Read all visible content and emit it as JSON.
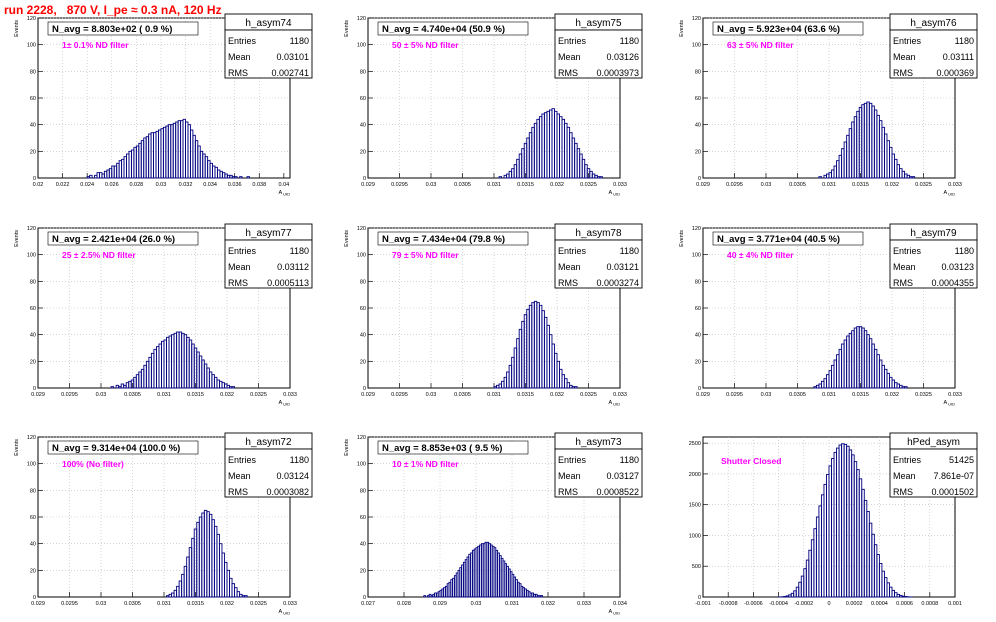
{
  "page_title": "run 2228,   870 V, I_pe ≈ 0.3 nA, 120 Hz",
  "colors": {
    "hist": "#000080",
    "label": "#ff00ff",
    "title": "#ff0000",
    "grid": "#bbbbbb"
  },
  "chart_data": [
    {
      "type": "bar",
      "name": "h_asym74",
      "navg": "N_avg = 8.803e+02 ( 0.9 %)",
      "filter": "1± 0.1% ND filter",
      "stats": {
        "entries": "1180",
        "mean": "0.03101",
        "rms": "0.002741"
      },
      "ylabel": "Events",
      "xlabel": "A_UID",
      "xlim": [
        0.02,
        0.0405
      ],
      "ylim": [
        0,
        120
      ],
      "xticks": [
        0.02,
        0.022,
        0.024,
        0.026,
        0.028,
        0.03,
        0.032,
        0.034,
        0.036,
        0.038,
        0.04
      ],
      "xtick_labels": [
        "0.02",
        "0.022",
        "0.024",
        "0.026",
        "0.028",
        "0.03",
        "0.032",
        "0.034",
        "0.036",
        "0.038",
        "0.04"
      ],
      "yticks": [
        0,
        20,
        40,
        60,
        80,
        100,
        120
      ],
      "bins": {
        "x0": 0.02,
        "w": 0.0002,
        "values": [
          0,
          0,
          0,
          0,
          0,
          0,
          0,
          0,
          0,
          0,
          0,
          0,
          0,
          0,
          0,
          0,
          0,
          0,
          0,
          0,
          1,
          2,
          0,
          2,
          4,
          4,
          3,
          5,
          6,
          7,
          9,
          9,
          11,
          13,
          14,
          16,
          18,
          20,
          21,
          23,
          24,
          26,
          28,
          30,
          31,
          33,
          34,
          34,
          35,
          36,
          37,
          38,
          39,
          40,
          40,
          41,
          42,
          43,
          43,
          44,
          42,
          40,
          36,
          32,
          28,
          24,
          20,
          18,
          16,
          13,
          11,
          9,
          8,
          6,
          5,
          4,
          3,
          2,
          2,
          1,
          1,
          0,
          1,
          0,
          0,
          1,
          0,
          0,
          0,
          0,
          0,
          0,
          0,
          0,
          0,
          0,
          0,
          0,
          0,
          0,
          0,
          0,
          0
        ]
      }
    },
    {
      "type": "bar",
      "name": "h_asym75",
      "navg": "N_avg = 4.740e+04 (50.9 %)",
      "filter": "50 ± 5% ND filter",
      "stats": {
        "entries": "1180",
        "mean": "0.03126",
        "rms": "0.0003973"
      },
      "ylabel": "Events",
      "xlabel": "A_UID",
      "xlim": [
        0.029,
        0.033
      ],
      "ylim": [
        0,
        120
      ],
      "xticks": [
        0.029,
        0.0295,
        0.03,
        0.0305,
        0.031,
        0.0315,
        0.032,
        0.0325,
        0.033
      ],
      "xtick_labels": [
        "0.029",
        "0.0295",
        "0.03",
        "0.0305",
        "0.031",
        "0.0315",
        "0.032",
        "0.0325",
        "0.033"
      ],
      "yticks": [
        0,
        20,
        40,
        60,
        80,
        100,
        120
      ],
      "bins": {
        "x0": 0.0298,
        "w": 4e-05,
        "values": [
          0,
          0,
          0,
          0,
          0,
          0,
          0,
          0,
          0,
          0,
          0,
          0,
          0,
          0,
          0,
          0,
          0,
          0,
          0,
          0,
          0,
          0,
          0,
          0,
          0,
          0,
          0,
          0,
          0,
          0,
          0,
          0,
          1,
          0,
          2,
          3,
          5,
          7,
          10,
          14,
          18,
          22,
          26,
          30,
          34,
          38,
          41,
          44,
          46,
          48,
          49,
          50,
          51,
          52,
          50,
          48,
          46,
          44,
          41,
          38,
          34,
          30,
          26,
          22,
          18,
          14,
          10,
          7,
          5,
          3,
          2,
          1,
          1,
          0,
          0,
          0,
          0,
          0,
          0,
          0,
          0,
          0
        ]
      }
    },
    {
      "type": "bar",
      "name": "h_asym76",
      "navg": "N_avg = 5.923e+04 (63.6 %)",
      "filter": "63 ± 5% ND filter",
      "stats": {
        "entries": "1180",
        "mean": "0.03111",
        "rms": "0.000369"
      },
      "ylabel": "Events",
      "xlabel": "A_UID",
      "xlim": [
        0.029,
        0.033
      ],
      "ylim": [
        0,
        120
      ],
      "xticks": [
        0.029,
        0.0295,
        0.03,
        0.0305,
        0.031,
        0.0315,
        0.032,
        0.0325,
        0.033
      ],
      "xtick_labels": [
        "0.029",
        "0.0295",
        "0.03",
        "0.0305",
        "0.031",
        "0.0315",
        "0.032",
        "0.0325",
        "0.033"
      ],
      "yticks": [
        0,
        20,
        40,
        60,
        80,
        100,
        120
      ],
      "bins": {
        "x0": 0.0298,
        "w": 4e-05,
        "values": [
          0,
          0,
          0,
          0,
          0,
          0,
          0,
          0,
          0,
          0,
          0,
          0,
          0,
          0,
          0,
          0,
          0,
          0,
          0,
          0,
          0,
          0,
          0,
          0,
          0,
          0,
          1,
          0,
          2,
          3,
          4,
          6,
          9,
          13,
          17,
          22,
          27,
          32,
          37,
          42,
          46,
          50,
          53,
          55,
          56,
          57,
          56,
          54,
          51,
          47,
          43,
          38,
          33,
          28,
          23,
          18,
          14,
          10,
          7,
          5,
          3,
          2,
          1,
          1,
          0,
          0,
          0,
          0,
          0,
          0,
          0,
          0,
          0,
          0,
          0,
          0,
          0,
          0,
          0,
          0
        ]
      }
    },
    {
      "type": "bar",
      "name": "h_asym77",
      "navg": "N_avg = 2.421e+04 (26.0 %)",
      "filter": "25 ± 2.5% ND filter",
      "stats": {
        "entries": "1180",
        "mean": "0.03112",
        "rms": "0.0005113"
      },
      "ylabel": "Events",
      "xlabel": "A_UID",
      "xlim": [
        0.029,
        0.033
      ],
      "ylim": [
        0,
        120
      ],
      "xticks": [
        0.029,
        0.0295,
        0.03,
        0.0305,
        0.031,
        0.0315,
        0.032,
        0.0325,
        0.033
      ],
      "xtick_labels": [
        "0.029",
        "0.0295",
        "0.03",
        "0.0305",
        "0.031",
        "0.0315",
        "0.032",
        "0.0325",
        "0.033"
      ],
      "yticks": [
        0,
        20,
        40,
        60,
        80,
        100,
        120
      ],
      "bins": {
        "x0": 0.0296,
        "w": 4e-05,
        "values": [
          0,
          0,
          0,
          0,
          0,
          0,
          0,
          0,
          0,
          0,
          0,
          0,
          0,
          0,
          1,
          0,
          2,
          1,
          3,
          2,
          4,
          5,
          6,
          8,
          10,
          12,
          14,
          17,
          20,
          23,
          26,
          29,
          31,
          33,
          35,
          36,
          38,
          39,
          40,
          41,
          42,
          42,
          41,
          40,
          38,
          36,
          33,
          30,
          27,
          24,
          21,
          18,
          15,
          12,
          10,
          8,
          6,
          5,
          4,
          3,
          2,
          1,
          1,
          0,
          0,
          0,
          0,
          0,
          0,
          0,
          0,
          0,
          0,
          0,
          0,
          0,
          0,
          0,
          0,
          0,
          0,
          0,
          0,
          0,
          0,
          0,
          0,
          0,
          0,
          0
        ]
      }
    },
    {
      "type": "bar",
      "name": "h_asym78",
      "navg": "N_avg = 7.434e+04 (79.8 %)",
      "filter": "79 ± 5% ND filter",
      "stats": {
        "entries": "1180",
        "mean": "0.03121",
        "rms": "0.0003274"
      },
      "ylabel": "Events",
      "xlabel": "A_UID",
      "xlim": [
        0.029,
        0.033
      ],
      "ylim": [
        0,
        120
      ],
      "xticks": [
        0.029,
        0.0295,
        0.03,
        0.0305,
        0.031,
        0.0315,
        0.032,
        0.0325,
        0.033
      ],
      "xtick_labels": [
        "0.029",
        "0.0295",
        "0.03",
        "0.0305",
        "0.031",
        "0.0315",
        "0.032",
        "0.0325",
        "0.033"
      ],
      "yticks": [
        0,
        20,
        40,
        60,
        80,
        100,
        120
      ],
      "bins": {
        "x0": 0.0298,
        "w": 4e-05,
        "values": [
          0,
          0,
          0,
          0,
          0,
          0,
          0,
          0,
          0,
          0,
          0,
          0,
          0,
          0,
          0,
          0,
          0,
          0,
          0,
          0,
          0,
          0,
          0,
          0,
          0,
          0,
          0,
          0,
          0,
          0,
          1,
          2,
          3,
          5,
          8,
          12,
          17,
          23,
          30,
          37,
          44,
          50,
          55,
          59,
          62,
          64,
          65,
          64,
          62,
          58,
          53,
          47,
          40,
          33,
          26,
          20,
          14,
          10,
          7,
          4,
          2,
          1,
          1,
          0,
          0,
          0,
          0,
          0,
          0,
          0,
          0,
          0,
          0,
          0,
          0,
          0,
          0,
          0,
          0,
          0
        ]
      }
    },
    {
      "type": "bar",
      "name": "h_asym79",
      "navg": "N_avg = 3.771e+04 (40.5 %)",
      "filter": "40 ± 4% ND filter",
      "stats": {
        "entries": "1180",
        "mean": "0.03123",
        "rms": "0.0004355"
      },
      "ylabel": "Events",
      "xlabel": "A_UID",
      "xlim": [
        0.029,
        0.033
      ],
      "ylim": [
        0,
        120
      ],
      "xticks": [
        0.029,
        0.0295,
        0.03,
        0.0305,
        0.031,
        0.0315,
        0.032,
        0.0325,
        0.033
      ],
      "xtick_labels": [
        "0.029",
        "0.0295",
        "0.03",
        "0.0305",
        "0.031",
        "0.0315",
        "0.032",
        "0.0325",
        "0.033"
      ],
      "yticks": [
        0,
        20,
        40,
        60,
        80,
        100,
        120
      ],
      "bins": {
        "x0": 0.0298,
        "w": 4e-05,
        "values": [
          0,
          0,
          0,
          0,
          0,
          0,
          0,
          0,
          0,
          0,
          0,
          0,
          0,
          0,
          0,
          0,
          0,
          0,
          0,
          0,
          0,
          0,
          0,
          0,
          1,
          2,
          3,
          5,
          7,
          10,
          13,
          17,
          21,
          25,
          29,
          33,
          36,
          39,
          41,
          43,
          45,
          46,
          46,
          45,
          43,
          40,
          37,
          33,
          29,
          25,
          21,
          17,
          14,
          11,
          8,
          6,
          4,
          3,
          2,
          1,
          1,
          0,
          0,
          0,
          0,
          0,
          0,
          0,
          0,
          0,
          0,
          0,
          0,
          0,
          0,
          0,
          0,
          0,
          0,
          0
        ]
      }
    },
    {
      "type": "bar",
      "name": "h_asym72",
      "navg": "N_avg = 9.314e+04 (100.0 %)",
      "filter": "100% (No filter)",
      "stats": {
        "entries": "1180",
        "mean": "0.03124",
        "rms": "0.0003082"
      },
      "ylabel": "Events",
      "xlabel": "A_UID",
      "xlim": [
        0.029,
        0.033
      ],
      "ylim": [
        0,
        120
      ],
      "xticks": [
        0.029,
        0.0295,
        0.03,
        0.0305,
        0.031,
        0.0315,
        0.032,
        0.0325,
        0.033
      ],
      "xtick_labels": [
        "0.029",
        "0.0295",
        "0.03",
        "0.0305",
        "0.031",
        "0.0315",
        "0.032",
        "0.0325",
        "0.033"
      ],
      "yticks": [
        0,
        20,
        40,
        60,
        80,
        100,
        120
      ],
      "bins": {
        "x0": 0.0298,
        "w": 4e-05,
        "values": [
          0,
          0,
          0,
          0,
          0,
          0,
          0,
          0,
          0,
          0,
          0,
          0,
          0,
          0,
          0,
          0,
          0,
          0,
          0,
          0,
          0,
          0,
          0,
          0,
          0,
          0,
          0,
          0,
          0,
          0,
          0,
          1,
          2,
          3,
          5,
          8,
          12,
          17,
          23,
          30,
          37,
          44,
          51,
          56,
          60,
          63,
          65,
          64,
          62,
          58,
          53,
          47,
          40,
          33,
          26,
          20,
          14,
          10,
          7,
          4,
          2,
          1,
          1,
          0,
          0,
          0,
          0,
          0,
          0,
          0,
          0,
          0,
          0,
          0,
          0,
          0,
          0,
          0,
          0,
          0
        ]
      }
    },
    {
      "type": "bar",
      "name": "h_asym73",
      "navg": "N_avg = 8.853e+03 ( 9.5 %)",
      "filter": "10 ± 1% ND filter",
      "stats": {
        "entries": "1180",
        "mean": "0.03127",
        "rms": "0.0008522"
      },
      "ylabel": "Events",
      "xlabel": "A_UID",
      "xlim": [
        0.027,
        0.034
      ],
      "ylim": [
        0,
        120
      ],
      "xticks": [
        0.027,
        0.028,
        0.029,
        0.03,
        0.031,
        0.032,
        0.033,
        0.034
      ],
      "xtick_labels": [
        "0.027",
        "0.028",
        "0.029",
        "0.03",
        "0.031",
        "0.032",
        "0.033",
        "0.034"
      ],
      "yticks": [
        0,
        20,
        40,
        60,
        80,
        100,
        120
      ],
      "bins": {
        "x0": 0.0285,
        "w": 5e-05,
        "values": [
          0,
          1,
          0,
          1,
          2,
          1,
          2,
          3,
          3,
          4,
          5,
          6,
          7,
          8,
          10,
          11,
          13,
          14,
          16,
          18,
          20,
          22,
          24,
          26,
          28,
          30,
          32,
          33,
          35,
          36,
          37,
          38,
          39,
          40,
          40,
          41,
          41,
          40,
          39,
          38,
          37,
          35,
          33,
          31,
          29,
          27,
          25,
          23,
          21,
          19,
          17,
          15,
          13,
          11,
          10,
          8,
          7,
          6,
          5,
          4,
          3,
          3,
          2,
          2,
          1,
          1,
          1,
          0,
          0,
          0
        ]
      }
    },
    {
      "type": "bar",
      "name": "hPed_asym",
      "navg": "",
      "filter": "Shutter Closed",
      "stats": {
        "entries": "51425",
        "mean": "7.861e-07",
        "rms": "0.0001502"
      },
      "ylabel": "",
      "xlabel": "",
      "xlim": [
        -0.001,
        0.001
      ],
      "ylim": [
        0,
        2600
      ],
      "xticks": [
        -0.001,
        -0.0008,
        -0.0006,
        -0.0004,
        -0.0002,
        0,
        0.0002,
        0.0004,
        0.0006,
        0.0008,
        0.001
      ],
      "xtick_labels": [
        "-0.001",
        "-0.0008",
        "-0.0006",
        "-0.0004",
        "-0.0002",
        "0",
        "0.0002",
        "0.0004",
        "0.0006",
        "0.0008",
        "0.001"
      ],
      "yticks": [
        0,
        500,
        1000,
        1500,
        2000,
        2500
      ],
      "bins": {
        "x0": -0.0006,
        "w": 2e-05,
        "values": [
          0,
          0,
          0,
          0,
          0,
          0,
          0,
          0,
          0,
          0,
          1,
          3,
          8,
          18,
          35,
          60,
          100,
          160,
          240,
          340,
          460,
          600,
          760,
          930,
          1110,
          1300,
          1480,
          1660,
          1830,
          1990,
          2130,
          2250,
          2350,
          2420,
          2470,
          2490,
          2480,
          2450,
          2390,
          2310,
          2200,
          2070,
          1920,
          1750,
          1570,
          1390,
          1200,
          1020,
          850,
          690,
          545,
          420,
          315,
          230,
          160,
          108,
          70,
          42,
          24,
          13,
          7,
          3,
          1,
          0,
          0,
          0,
          0,
          0,
          0,
          0
        ]
      }
    }
  ]
}
